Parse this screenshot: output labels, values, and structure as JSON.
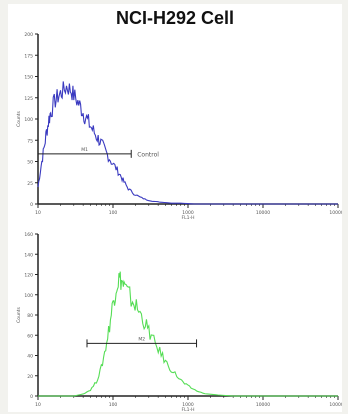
{
  "title": "NCI-H292 Cell",
  "chart_data": [
    {
      "type": "area",
      "color": "#3a3ac0",
      "xscale": "log",
      "xlim": [
        10,
        100000
      ],
      "ylim": [
        0,
        200
      ],
      "ylabel": "Counts",
      "xlabel": "FL1-H",
      "yticks": [
        0,
        25,
        50,
        75,
        100,
        125,
        150,
        175,
        200
      ],
      "xticks": [
        10,
        100,
        1000,
        10000,
        100000
      ],
      "x": [
        10,
        11,
        12,
        13,
        14,
        15,
        17,
        19,
        21,
        24,
        27,
        30,
        34,
        38,
        42,
        47,
        53,
        60,
        67,
        75,
        84,
        95,
        110,
        125,
        140,
        160,
        190,
        230,
        280,
        350,
        450,
        600,
        800,
        1200,
        2000,
        5000,
        100000
      ],
      "values": [
        20,
        45,
        65,
        85,
        100,
        110,
        122,
        128,
        132,
        138,
        135,
        128,
        120,
        112,
        104,
        96,
        88,
        80,
        74,
        66,
        58,
        50,
        42,
        34,
        26,
        18,
        12,
        8,
        5,
        3,
        2,
        1,
        1,
        0,
        0,
        0,
        0
      ],
      "gate": {
        "label": "M1",
        "x_start": 10,
        "x_end": 175,
        "y": 59
      },
      "annotation": "Control"
    },
    {
      "type": "area",
      "color": "#55dd55",
      "xscale": "log",
      "xlim": [
        10,
        100000
      ],
      "ylim": [
        0,
        160
      ],
      "ylabel": "Counts",
      "xlabel": "FL1-H",
      "yticks": [
        0,
        20,
        40,
        60,
        80,
        100,
        120,
        140,
        160
      ],
      "xticks": [
        10,
        100,
        1000,
        10000,
        100000
      ],
      "x": [
        10,
        30,
        40,
        50,
        60,
        70,
        80,
        90,
        100,
        110,
        120,
        130,
        140,
        160,
        190,
        220,
        260,
        300,
        350,
        420,
        500,
        600,
        750,
        900,
        1100,
        1400,
        1800,
        2500,
        4000,
        100000
      ],
      "values": [
        0,
        0,
        2,
        6,
        14,
        28,
        48,
        70,
        92,
        108,
        116,
        114,
        108,
        100,
        92,
        84,
        74,
        64,
        54,
        44,
        34,
        26,
        18,
        12,
        8,
        4,
        2,
        1,
        0,
        0
      ],
      "gate": {
        "label": "M2",
        "x_start": 45,
        "x_end": 1300,
        "y": 52
      }
    }
  ]
}
